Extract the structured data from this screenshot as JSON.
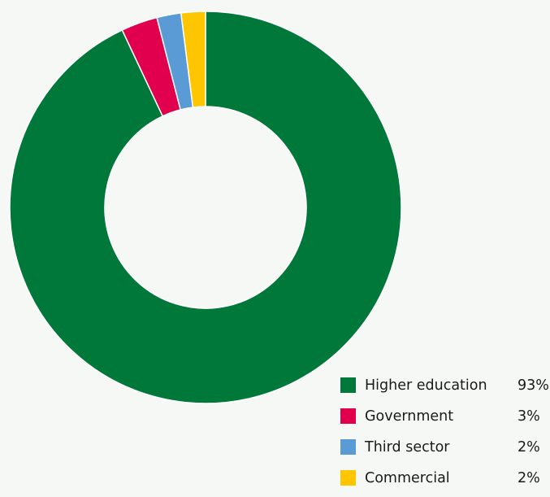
{
  "chart_data": {
    "type": "pie",
    "categories": [
      "Higher education",
      "Government",
      "Third sector",
      "Commercial"
    ],
    "values": [
      93,
      3,
      2,
      2
    ],
    "value_labels": [
      "93%",
      "3%",
      "2%",
      "2%"
    ],
    "colors": [
      "#00783a",
      "#e0004d",
      "#5b9bd5",
      "#ffc600"
    ],
    "donut": true,
    "legend_position": "bottom-right"
  },
  "legend": [
    {
      "label": "Higher education",
      "value": "93%",
      "color": "#00783a"
    },
    {
      "label": "Government",
      "value": "3%",
      "color": "#e0004d"
    },
    {
      "label": "Third sector",
      "value": "2%",
      "color": "#5b9bd5"
    },
    {
      "label": "Commercial",
      "value": "2%",
      "color": "#ffc600"
    }
  ]
}
